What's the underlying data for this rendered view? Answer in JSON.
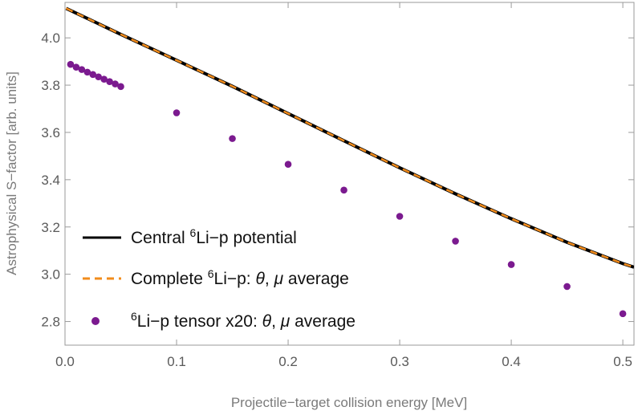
{
  "chart_data": {
    "type": "line",
    "xlabel": "Projectile−target collision energy [MeV]",
    "ylabel": "Astrophysical S−factor [arb. units]",
    "xlim": [
      0,
      0.51
    ],
    "ylim": [
      2.7,
      4.15
    ],
    "xticks": [
      0.0,
      0.1,
      0.2,
      0.3,
      0.4,
      0.5
    ],
    "xtick_labels": [
      "0.0",
      "0.1",
      "0.2",
      "0.3",
      "0.4",
      "0.5"
    ],
    "yticks": [
      2.8,
      3.0,
      3.2,
      3.4,
      3.6,
      3.8,
      4.0
    ],
    "ytick_labels": [
      "2.8",
      "3.0",
      "3.2",
      "3.4",
      "3.6",
      "3.8",
      "4.0"
    ],
    "grid": false,
    "legend_position": "bottom-left",
    "series": [
      {
        "name": "Central 6Li−p potential",
        "legend": {
          "prefix": "Central ",
          "sup": "6",
          "rest": "Li−p potential"
        },
        "style": "solid",
        "color": "#000000",
        "x": [
          0.001,
          0.05,
          0.1,
          0.15,
          0.2,
          0.25,
          0.3,
          0.35,
          0.4,
          0.45,
          0.5,
          0.51
        ],
        "y": [
          4.125,
          4.015,
          3.905,
          3.795,
          3.68,
          3.565,
          3.45,
          3.34,
          3.235,
          3.135,
          3.045,
          3.03
        ]
      },
      {
        "name": "Complete 6Li−p: θ, μ average",
        "legend": {
          "prefix": "Complete ",
          "sup": "6",
          "rest": "Li−p: ",
          "math": "θ",
          "mid": ", ",
          "math2": "μ",
          "end": " average"
        },
        "style": "dashed",
        "color": "#f28c1c",
        "x": [
          0.001,
          0.05,
          0.1,
          0.15,
          0.2,
          0.25,
          0.3,
          0.35,
          0.4,
          0.45,
          0.5,
          0.51
        ],
        "y": [
          4.125,
          4.015,
          3.905,
          3.795,
          3.68,
          3.565,
          3.45,
          3.34,
          3.235,
          3.135,
          3.045,
          3.03
        ]
      },
      {
        "name": "6Li−p tensor x20: θ, μ average",
        "legend": {
          "prefix": "",
          "sup": "6",
          "rest": "Li−p tensor x20: ",
          "math": "θ",
          "mid": ", ",
          "math2": "μ",
          "end": " average"
        },
        "style": "points",
        "color": "#7b1a8f",
        "x": [
          0.005,
          0.01,
          0.015,
          0.02,
          0.025,
          0.03,
          0.035,
          0.04,
          0.045,
          0.05,
          0.1,
          0.15,
          0.2,
          0.25,
          0.3,
          0.35,
          0.4,
          0.45,
          0.5
        ],
        "y": [
          3.888,
          3.876,
          3.866,
          3.855,
          3.845,
          3.835,
          3.825,
          3.815,
          3.805,
          3.794,
          3.683,
          3.574,
          3.465,
          3.356,
          3.245,
          3.14,
          3.041,
          2.948,
          2.833
        ]
      }
    ]
  }
}
